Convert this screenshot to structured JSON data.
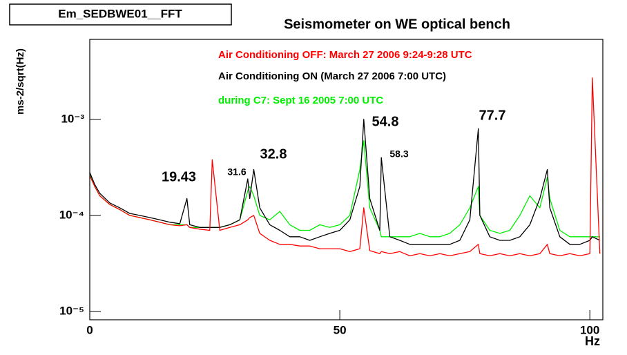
{
  "chart_data": {
    "type": "line",
    "box_label": "Em_SEDBWE01__FFT",
    "title": "Seismometer on WE optical bench",
    "ylabel": "ms-2/sqrt(Hz)",
    "xlabel": "Hz",
    "logy": true,
    "xlim": [
      0,
      102.6
    ],
    "ylim": [
      8.2e-06,
      0.0068
    ],
    "xticks": [
      0,
      50,
      100
    ],
    "yticks": [
      {
        "value": 1e-05,
        "label": "10⁻⁵"
      },
      {
        "value": 0.0001,
        "label": "10⁻⁴"
      },
      {
        "value": 0.001,
        "label": "10⁻³"
      }
    ],
    "annotations": [
      "19.43",
      "31.6",
      "32.8",
      "54.8",
      "58.3",
      "77.7"
    ],
    "x": [
      0,
      1,
      2,
      4,
      6,
      8,
      10,
      12,
      14,
      16,
      18,
      19.43,
      20,
      22,
      24,
      24.5,
      26,
      28,
      30,
      31.6,
      32,
      32.8,
      34,
      36,
      38,
      40,
      42,
      44,
      46,
      48,
      50,
      52,
      54,
      54.8,
      56,
      58,
      58.3,
      60,
      62,
      64,
      66,
      68,
      70,
      72,
      74,
      76,
      77.7,
      78,
      80,
      82,
      84,
      86,
      88,
      90,
      91.5,
      92,
      94,
      96,
      98,
      100,
      100.5,
      102
    ],
    "series": [
      {
        "name": "Air Conditioning OFF: March 27 2006 9:24-9:28 UTC",
        "color": "#ff0000",
        "values": [
          0.00026,
          0.0002,
          0.00016,
          0.00013,
          0.000115,
          0.0001,
          9.5e-05,
          9e-05,
          8.5e-05,
          8e-05,
          7.8e-05,
          8e-05,
          7.5e-05,
          7.2e-05,
          7e-05,
          0.00038,
          7e-05,
          7.5e-05,
          8e-05,
          9e-05,
          9.5e-05,
          0.0001,
          6.5e-05,
          5.5e-05,
          5e-05,
          5e-05,
          4.8e-05,
          4.8e-05,
          4.5e-05,
          4.5e-05,
          4.5e-05,
          4.2e-05,
          4.5e-05,
          0.00012,
          4.3e-05,
          4e-05,
          4.2e-05,
          4e-05,
          4.2e-05,
          3.8e-05,
          4e-05,
          3.8e-05,
          4e-05,
          3.8e-05,
          4e-05,
          4.2e-05,
          5e-05,
          4e-05,
          3.8e-05,
          4e-05,
          3.8e-05,
          4e-05,
          3.8e-05,
          4e-05,
          5e-05,
          4e-05,
          3.8e-05,
          4e-05,
          3.8e-05,
          4e-05,
          0.0027,
          4e-05
        ]
      },
      {
        "name": "Air Conditioning ON (March 27 2006 7:00 UTC)",
        "color": "#000000",
        "values": [
          0.00028,
          0.00021,
          0.00017,
          0.000135,
          0.00012,
          0.000105,
          0.0001,
          9.5e-05,
          9e-05,
          8.5e-05,
          8.2e-05,
          0.00015,
          8e-05,
          7.5e-05,
          7.5e-05,
          7.5e-05,
          7.5e-05,
          8e-05,
          9e-05,
          0.00024,
          0.00015,
          0.0003,
          0.00012,
          8e-05,
          7e-05,
          6e-05,
          6e-05,
          5.5e-05,
          6e-05,
          6.5e-05,
          7e-05,
          9e-05,
          0.0002,
          0.001,
          0.00015,
          7e-05,
          0.0004,
          6e-05,
          5.5e-05,
          5e-05,
          5e-05,
          5e-05,
          5e-05,
          5e-05,
          5.5e-05,
          9e-05,
          0.0008,
          0.0001,
          6e-05,
          5.5e-05,
          5.5e-05,
          6e-05,
          8e-05,
          0.00015,
          0.0003,
          0.00012,
          6e-05,
          5e-05,
          5e-05,
          5.5e-05,
          6e-05,
          5.5e-05
        ]
      },
      {
        "name": "during C7: Sept 16 2005 7:00 UTC",
        "color": "#00ee00",
        "values": [
          0.00027,
          0.0002,
          0.00016,
          0.00013,
          0.000115,
          0.0001,
          9.5e-05,
          9e-05,
          8.5e-05,
          8e-05,
          8e-05,
          8e-05,
          7.5e-05,
          7.5e-05,
          7.5e-05,
          7.5e-05,
          7.5e-05,
          8e-05,
          9e-05,
          0.00018,
          0.0002,
          0.00016,
          0.0001,
          9e-05,
          0.00011,
          8e-05,
          7e-05,
          7e-05,
          8e-05,
          7.5e-05,
          8e-05,
          0.0001,
          0.0003,
          0.0006,
          0.00012,
          7e-05,
          6e-05,
          6e-05,
          6e-05,
          6e-05,
          6.5e-05,
          6e-05,
          6e-05,
          6.5e-05,
          8e-05,
          0.00012,
          0.0002,
          0.0001,
          7e-05,
          6.5e-05,
          7e-05,
          0.0001,
          0.00016,
          0.00012,
          0.00025,
          0.00015,
          7e-05,
          6e-05,
          6e-05,
          6e-05,
          6e-05,
          6e-05
        ]
      }
    ]
  }
}
